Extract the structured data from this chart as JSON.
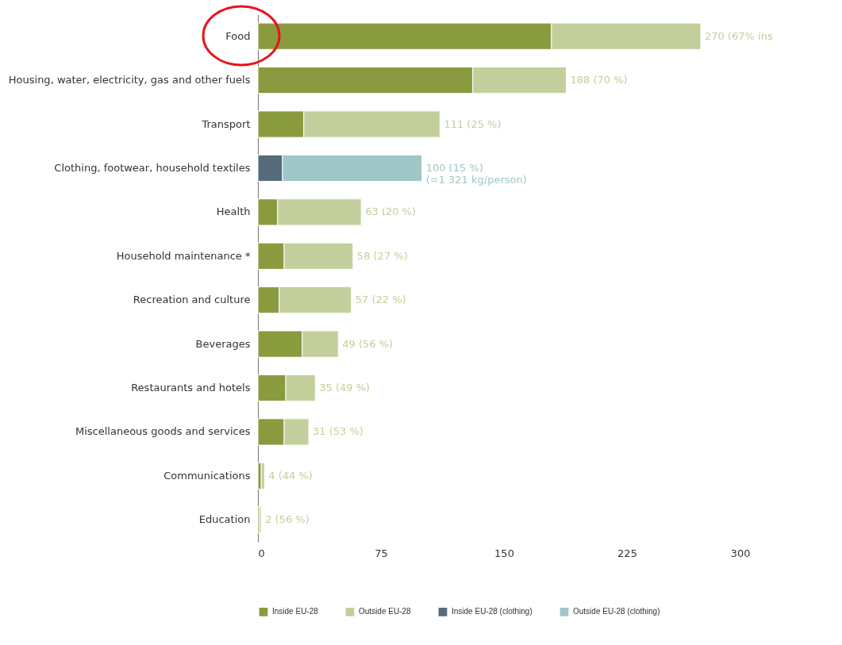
{
  "chart_data": {
    "type": "bar",
    "orientation": "horizontal",
    "stacked": true,
    "legend": "bottom",
    "categories": [
      "Food",
      "Housing, water, electricity, gas and other fuels",
      "Transport",
      "Clothing, footwear, household textiles",
      "Health",
      "Household maintenance *",
      "Recreation and culture",
      "Beverages",
      "Restaurants and hotels",
      "Miscellaneous goods and services",
      "Communications",
      "Education"
    ],
    "series": [
      {
        "name": "Inside EU-28",
        "color": "#8a9a3f",
        "values": [
          179,
          131,
          28,
          null,
          12,
          16,
          13,
          27,
          17,
          16,
          2,
          1
        ]
      },
      {
        "name": "Outside EU-28",
        "color": "#c2cf9c",
        "values": [
          91,
          57,
          83,
          null,
          51,
          42,
          44,
          22,
          18,
          15,
          2,
          1
        ]
      },
      {
        "name": "Inside EU-28 (clothing)",
        "color": "#546b7a",
        "values": [
          null,
          null,
          null,
          15,
          null,
          null,
          null,
          null,
          null,
          null,
          null,
          null
        ]
      },
      {
        "name": "Outside EU-28 (clothing)",
        "color": "#9fc7c7",
        "values": [
          null,
          null,
          null,
          85,
          null,
          null,
          null,
          null,
          null,
          null,
          null,
          null
        ]
      }
    ],
    "totals": [
      "270 (67% ins",
      "188 (70 %)",
      "111 (25 %)",
      "100 (15 %)\n(=1 321 kg/person)",
      "63 (20 %)",
      "58 (27 %)",
      "57 (22 %)",
      "49 (56 %)",
      "35 (49 %)",
      "31 (53 %)",
      "4 (44 %)",
      "2 (56 %)"
    ],
    "xlim": [
      0,
      300
    ],
    "xticks": [
      0,
      75,
      150,
      225,
      300
    ]
  }
}
